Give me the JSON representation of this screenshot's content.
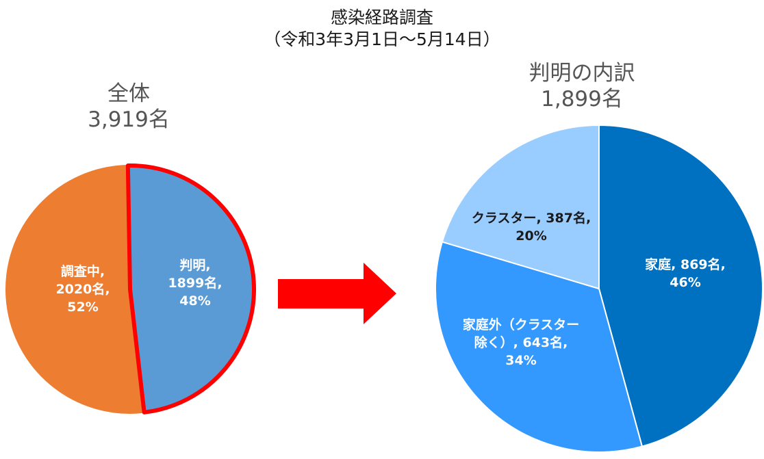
{
  "title": "感染経路調査",
  "subtitle": "（令和3年3月1日～5月14日）",
  "colors": {
    "orange": "#ED7D31",
    "left_blue": "#5B9BD5",
    "highlight_border": "#FF0000",
    "arrow": "#FF0000",
    "dark_blue": "#0070C0",
    "mid_blue": "#3399FF",
    "light_blue": "#99CCFF"
  },
  "chart_data": [
    {
      "type": "pie",
      "title": "全体",
      "subtitle": "3,919名",
      "total": 3919,
      "slices": [
        {
          "name": "判明",
          "value": 1899,
          "percent": 48,
          "color": "#5B9BD5",
          "label_lines": [
            "判明,",
            "1899名,",
            "48%"
          ]
        },
        {
          "name": "調査中",
          "value": 2020,
          "percent": 52,
          "color": "#ED7D31",
          "label_lines": [
            "調査中,",
            "2020名,",
            "52%"
          ]
        }
      ]
    },
    {
      "type": "pie",
      "title": "判明の内訳",
      "subtitle": "1,899名",
      "total": 1899,
      "slices": [
        {
          "name": "家庭",
          "value": 869,
          "percent": 46,
          "color": "#0070C0",
          "label_lines": [
            "家庭, 869名,",
            "46%"
          ]
        },
        {
          "name": "家庭外（クラスター除く）",
          "value": 643,
          "percent": 34,
          "color": "#3399FF",
          "label_lines": [
            "家庭外（クラスター",
            "除く）, 643名,",
            "34%"
          ]
        },
        {
          "name": "クラスター",
          "value": 387,
          "percent": 20,
          "color": "#99CCFF",
          "label_lines": [
            "クラスター, 387名,",
            "20%"
          ]
        }
      ]
    }
  ]
}
